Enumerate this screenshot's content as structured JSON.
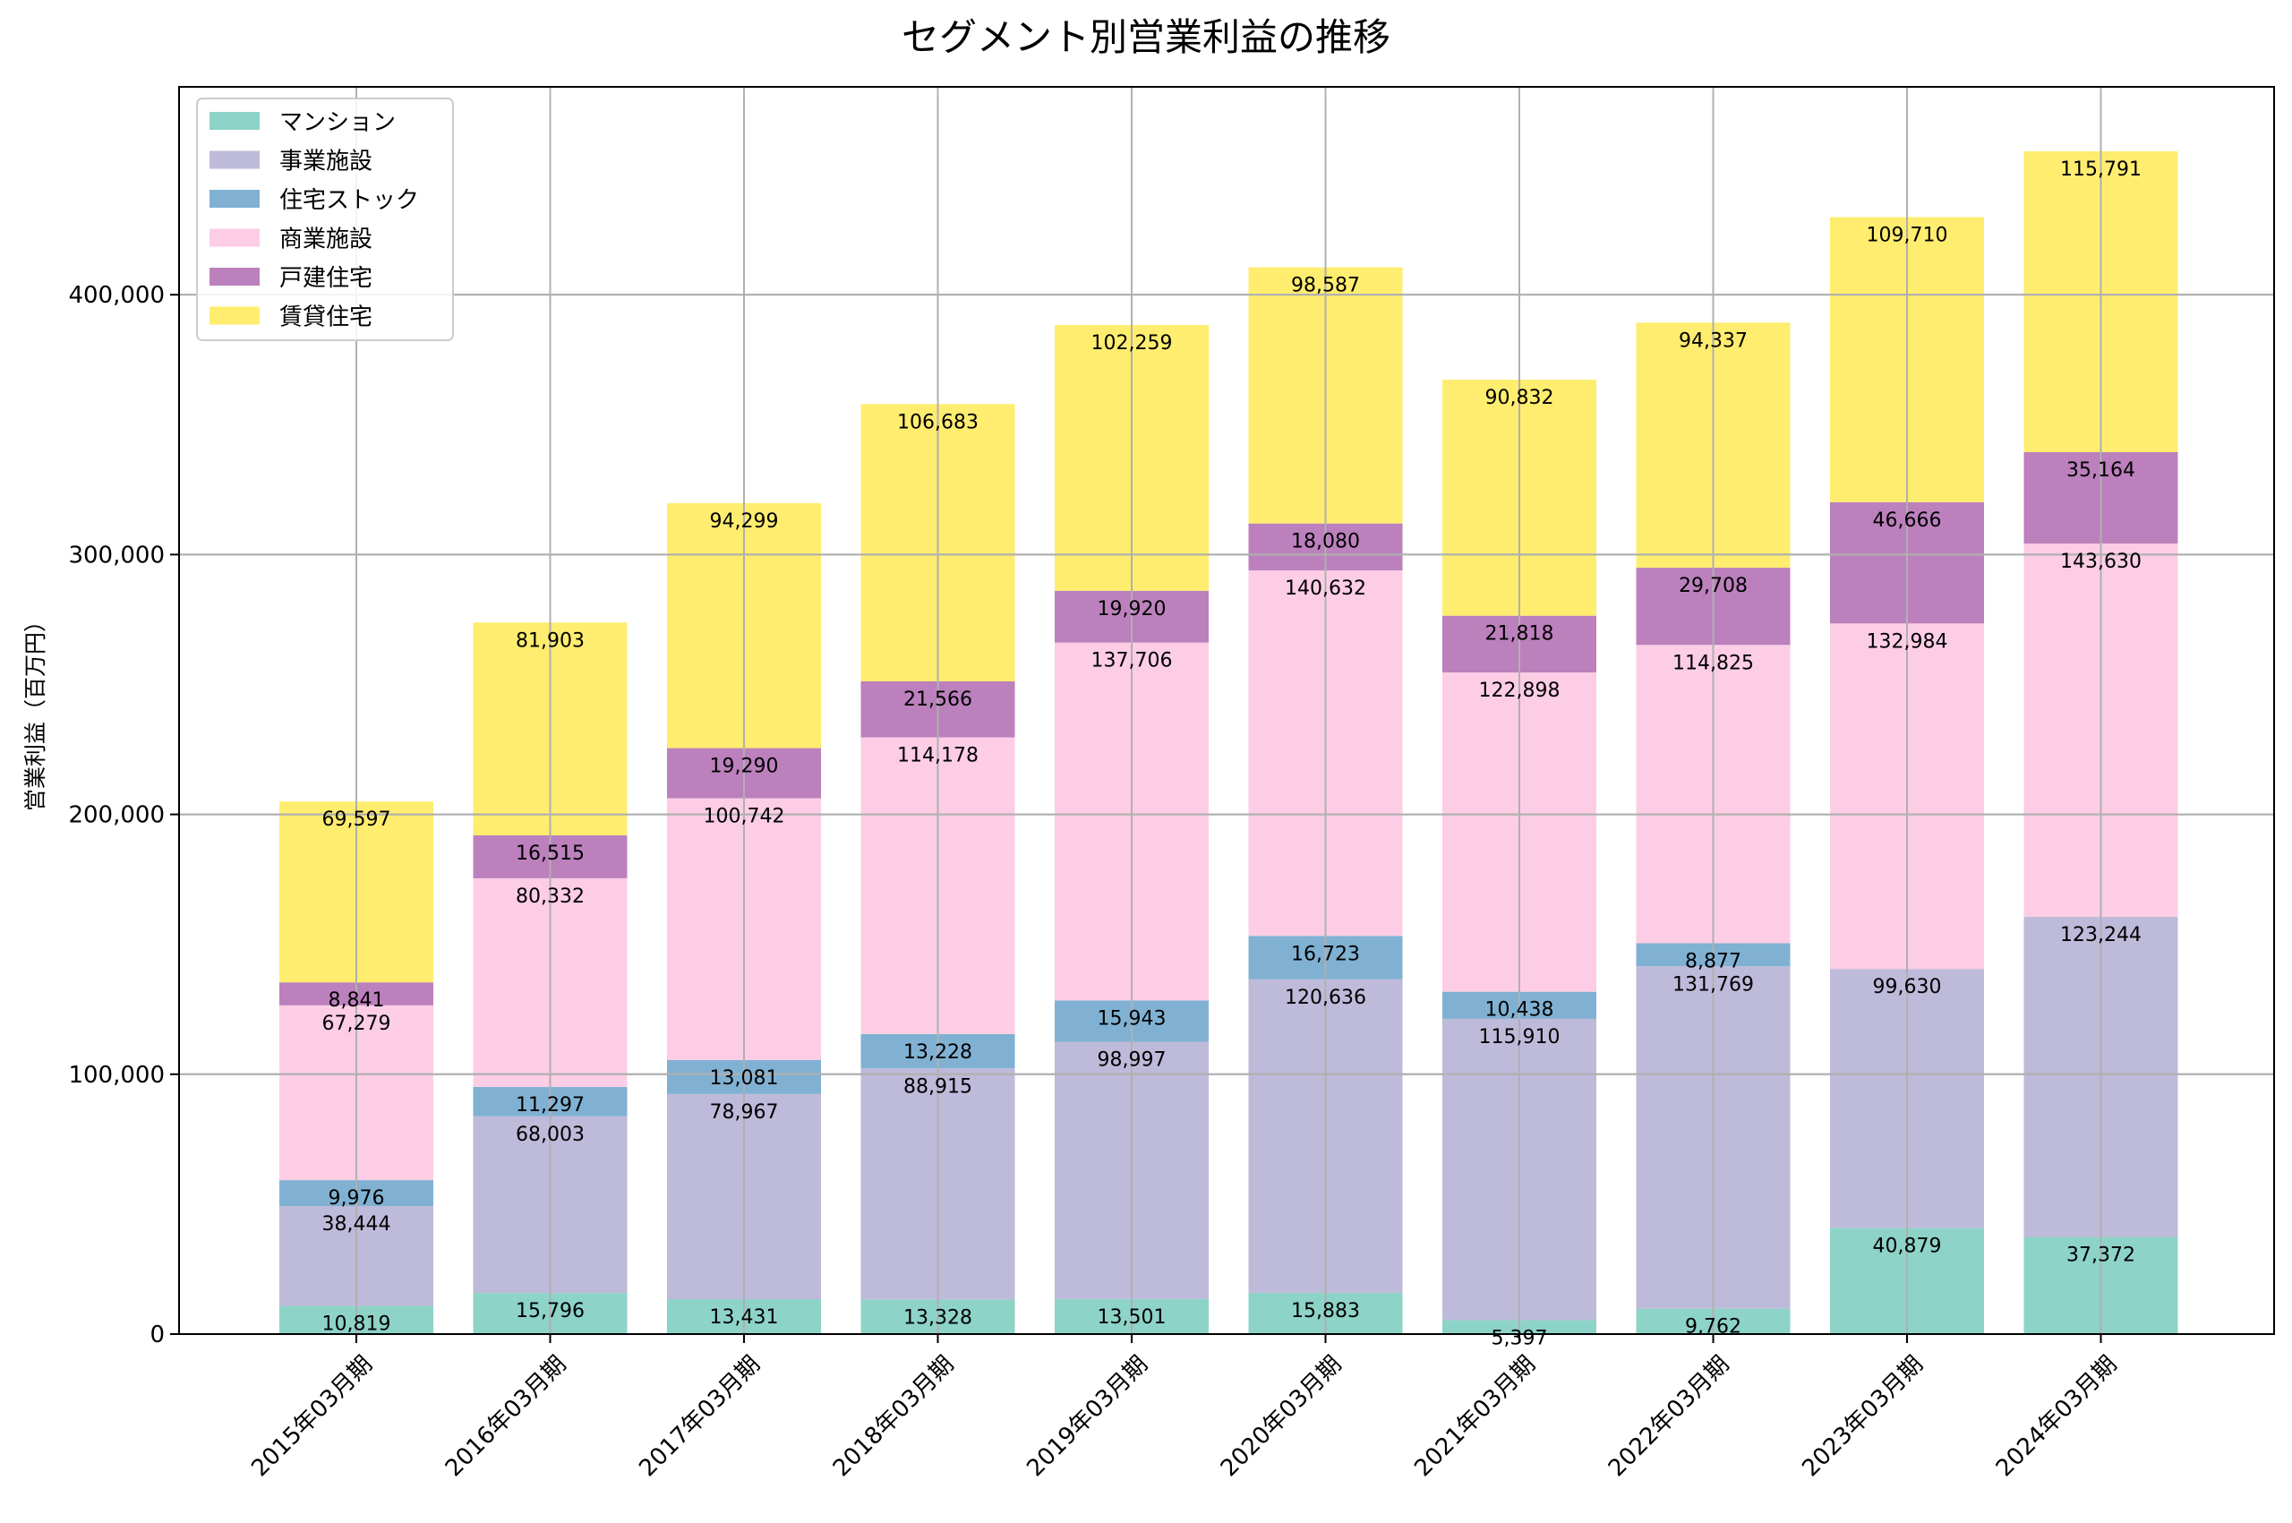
{
  "chart_data": {
    "type": "bar",
    "stacked": true,
    "title": "セグメント別営業利益の推移",
    "xlabel": "",
    "ylabel": "営業利益（百万円）",
    "ylim": [
      0,
      480000
    ],
    "yticks": [
      0,
      100000,
      200000,
      300000,
      400000
    ],
    "ytick_labels": [
      "0",
      "100,000",
      "200,000",
      "300,000",
      "400,000"
    ],
    "grid": true,
    "legend_position": "top-left",
    "categories": [
      "2015年03月期",
      "2016年03月期",
      "2017年03月期",
      "2018年03月期",
      "2019年03月期",
      "2020年03月期",
      "2021年03月期",
      "2022年03月期",
      "2023年03月期",
      "2024年03月期"
    ],
    "series": [
      {
        "name": "マンション",
        "color": "#8dd3c7",
        "values": [
          10819,
          15796,
          13431,
          13328,
          13501,
          15883,
          5397,
          9762,
          40879,
          37372
        ]
      },
      {
        "name": "事業施設",
        "color": "#bebada",
        "values": [
          38444,
          68003,
          78967,
          88915,
          98997,
          120636,
          115910,
          131769,
          99630,
          123244
        ]
      },
      {
        "name": "住宅ストック",
        "color": "#80b1d3",
        "values": [
          9976,
          11297,
          13081,
          13228,
          15943,
          16723,
          10438,
          8877,
          0,
          0
        ]
      },
      {
        "name": "商業施設",
        "color": "#fccde5",
        "values": [
          67279,
          80332,
          100742,
          114178,
          137706,
          140632,
          122898,
          114825,
          132984,
          143630
        ]
      },
      {
        "name": "戸建住宅",
        "color": "#bc80bd",
        "values": [
          8841,
          16515,
          19290,
          21566,
          19920,
          18080,
          21818,
          29708,
          46666,
          35164
        ]
      },
      {
        "name": "賃貸住宅",
        "color": "#ffed6f",
        "values": [
          69597,
          81903,
          94299,
          106683,
          102259,
          98587,
          90832,
          94337,
          109710,
          115791
        ]
      }
    ],
    "data_labels": [
      [
        "10,819",
        "15,796",
        "13,431",
        "13,328",
        "13,501",
        "15,883",
        "5,397",
        "9,762",
        "40,879",
        "37,372"
      ],
      [
        "38,444",
        "68,003",
        "78,967",
        "88,915",
        "98,997",
        "120,636",
        "115,910",
        "131,769",
        "99,630",
        "123,244"
      ],
      [
        "9,976",
        "11,297",
        "13,081",
        "13,228",
        "15,943",
        "16,723",
        "10,438",
        "8,877",
        "",
        ""
      ],
      [
        "67,279",
        "80,332",
        "100,742",
        "114,178",
        "137,706",
        "140,632",
        "122,898",
        "114,825",
        "132,984",
        "143,630"
      ],
      [
        "8,841",
        "16,515",
        "19,290",
        "21,566",
        "19,920",
        "18,080",
        "21,818",
        "29,708",
        "46,666",
        "35,164"
      ],
      [
        "69,597",
        "81,903",
        "94,299",
        "106,683",
        "102,259",
        "98,587",
        "90,832",
        "94,337",
        "109,710",
        "115,791"
      ]
    ]
  }
}
